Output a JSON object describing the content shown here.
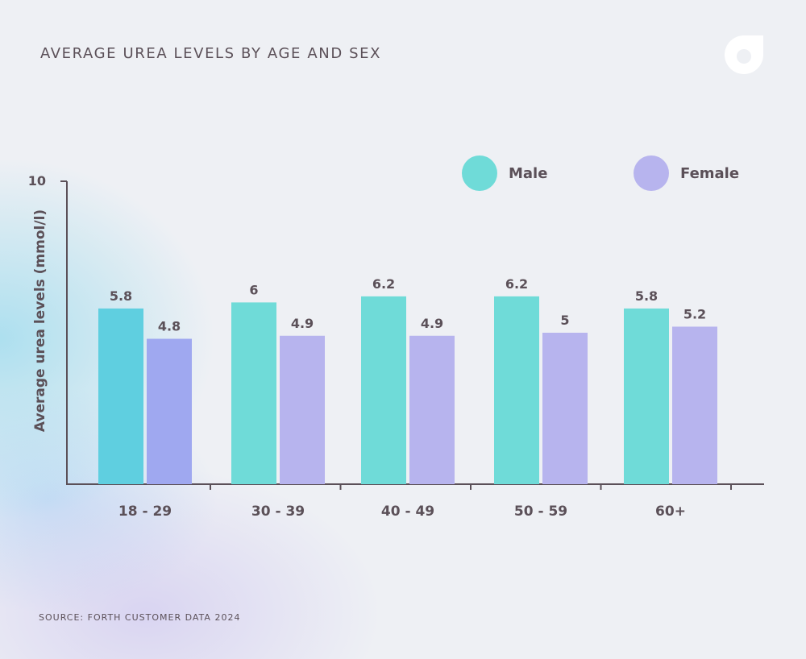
{
  "page": {
    "title": "AVERAGE UREA LEVELS BY AGE AND SEX",
    "source": "SOURCE: FORTH CUSTOMER DATA 2024",
    "logo_icon": "forth-logo-icon"
  },
  "legend": {
    "male": "Male",
    "female": "Female"
  },
  "colors": {
    "male": "#6fdbd8",
    "female": "#b7b4ee",
    "male_first": "#5fcfe0",
    "female_first": "#9fa8f0",
    "axis": "#5b5058",
    "text": "#5b5058"
  },
  "chart_data": {
    "type": "bar",
    "title": "AVERAGE UREA LEVELS BY AGE AND SEX",
    "xlabel": "",
    "ylabel": "Average urea levels (mmol/l)",
    "categories": [
      "18 - 29",
      "30 - 39",
      "40 - 49",
      "50 - 59",
      "60+"
    ],
    "series": [
      {
        "name": "Male",
        "values": [
          5.8,
          6,
          6.2,
          6.2,
          5.8
        ]
      },
      {
        "name": "Female",
        "values": [
          4.8,
          4.9,
          4.9,
          5,
          5.2
        ]
      }
    ],
    "value_labels": [
      [
        "5.8",
        "6",
        "6.2",
        "6.2",
        "5.8"
      ],
      [
        "4.8",
        "4.9",
        "4.9",
        "5",
        "5.2"
      ]
    ],
    "ylim": [
      0,
      10
    ],
    "y_tick_labels": [
      "10"
    ],
    "grid": false,
    "legend_position": "top-right"
  }
}
